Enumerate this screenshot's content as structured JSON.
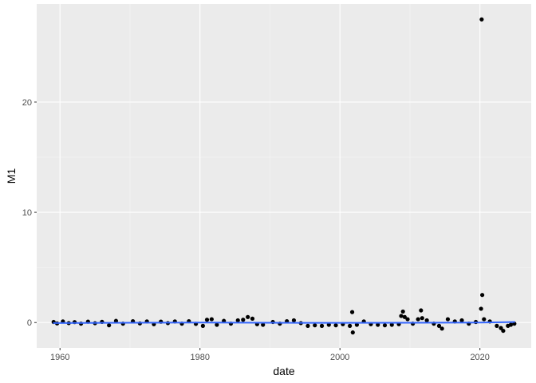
{
  "chart_data": {
    "type": "scatter",
    "title": "",
    "xlabel": "date",
    "ylabel": "M1",
    "x_scale": "date",
    "xlim": [
      "1956-09-01",
      "2027-05-01"
    ],
    "ylim": [
      -2.3,
      28.9
    ],
    "x_ticks": [
      {
        "value": "1960-01-01",
        "label": "1960"
      },
      {
        "value": "1980-01-01",
        "label": "1980"
      },
      {
        "value": "2000-01-01",
        "label": "2000"
      },
      {
        "value": "2020-01-01",
        "label": "2020"
      }
    ],
    "y_ticks": [
      {
        "value": 0,
        "label": "0"
      },
      {
        "value": 10,
        "label": "10"
      },
      {
        "value": 20,
        "label": "20"
      }
    ],
    "grid": true,
    "legend": "none",
    "colors": {
      "panel_background": "#ebebeb",
      "grid_major": "#ffffff",
      "grid_minor": "#f5f5f5",
      "points": "#000000",
      "smooth_line": "#3366ff"
    },
    "series": [
      {
        "kind": "points",
        "points": [
          [
            "1959-02-01",
            0.05
          ],
          [
            "1959-08-01",
            -0.08
          ],
          [
            "1960-06-01",
            0.1
          ],
          [
            "1961-04-01",
            -0.05
          ],
          [
            "1962-02-01",
            0.04
          ],
          [
            "1963-01-01",
            -0.1
          ],
          [
            "1964-01-01",
            0.08
          ],
          [
            "1965-01-01",
            -0.06
          ],
          [
            "1966-01-01",
            0.06
          ],
          [
            "1967-01-01",
            -0.25
          ],
          [
            "1968-01-01",
            0.15
          ],
          [
            "1969-01-01",
            -0.1
          ],
          [
            "1970-06-01",
            0.12
          ],
          [
            "1971-06-01",
            -0.08
          ],
          [
            "1972-06-01",
            0.1
          ],
          [
            "1973-06-01",
            -0.15
          ],
          [
            "1974-06-01",
            0.08
          ],
          [
            "1975-06-01",
            -0.05
          ],
          [
            "1976-06-01",
            0.1
          ],
          [
            "1977-06-01",
            -0.1
          ],
          [
            "1978-06-01",
            0.12
          ],
          [
            "1979-06-01",
            -0.12
          ],
          [
            "1980-06-01",
            -0.3
          ],
          [
            "1981-01-01",
            0.25
          ],
          [
            "1981-09-01",
            0.3
          ],
          [
            "1982-06-01",
            -0.2
          ],
          [
            "1983-06-01",
            0.15
          ],
          [
            "1984-06-01",
            -0.1
          ],
          [
            "1985-06-01",
            0.2
          ],
          [
            "1986-03-01",
            0.25
          ],
          [
            "1986-11-01",
            0.5
          ],
          [
            "1987-07-01",
            0.35
          ],
          [
            "1988-03-01",
            -0.15
          ],
          [
            "1989-01-01",
            -0.2
          ],
          [
            "1990-06-01",
            0.05
          ],
          [
            "1991-06-01",
            -0.1
          ],
          [
            "1992-06-01",
            0.12
          ],
          [
            "1993-06-01",
            0.2
          ],
          [
            "1994-06-01",
            -0.05
          ],
          [
            "1995-06-01",
            -0.3
          ],
          [
            "1996-06-01",
            -0.25
          ],
          [
            "1997-06-01",
            -0.3
          ],
          [
            "1998-06-01",
            -0.2
          ],
          [
            "1999-06-01",
            -0.25
          ],
          [
            "2000-06-01",
            -0.15
          ],
          [
            "2001-06-01",
            -0.3
          ],
          [
            "2001-10-01",
            0.95
          ],
          [
            "2001-11-01",
            -0.9
          ],
          [
            "2002-06-01",
            -0.2
          ],
          [
            "2003-06-01",
            0.1
          ],
          [
            "2004-06-01",
            -0.15
          ],
          [
            "2005-06-01",
            -0.2
          ],
          [
            "2006-06-01",
            -0.25
          ],
          [
            "2007-06-01",
            -0.2
          ],
          [
            "2008-06-01",
            -0.15
          ],
          [
            "2008-10-01",
            0.6
          ],
          [
            "2009-01-01",
            1.0
          ],
          [
            "2009-04-01",
            0.5
          ],
          [
            "2009-09-01",
            0.3
          ],
          [
            "2010-06-01",
            -0.1
          ],
          [
            "2011-03-01",
            0.3
          ],
          [
            "2011-08-01",
            1.1
          ],
          [
            "2011-10-01",
            0.4
          ],
          [
            "2012-06-01",
            0.2
          ],
          [
            "2013-06-01",
            -0.1
          ],
          [
            "2014-03-01",
            -0.3
          ],
          [
            "2014-08-01",
            -0.55
          ],
          [
            "2015-06-01",
            0.3
          ],
          [
            "2016-06-01",
            0.1
          ],
          [
            "2017-06-01",
            0.2
          ],
          [
            "2018-06-01",
            -0.1
          ],
          [
            "2019-06-01",
            0.05
          ],
          [
            "2020-03-01",
            1.25
          ],
          [
            "2020-04-01",
            27.5
          ],
          [
            "2020-05-01",
            2.5
          ],
          [
            "2020-08-01",
            0.3
          ],
          [
            "2021-06-01",
            0.1
          ],
          [
            "2022-06-01",
            -0.3
          ],
          [
            "2023-01-01",
            -0.5
          ],
          [
            "2023-05-01",
            -0.75
          ],
          [
            "2024-01-01",
            -0.3
          ],
          [
            "2024-06-01",
            -0.2
          ],
          [
            "2024-12-01",
            -0.1
          ]
        ]
      },
      {
        "kind": "smooth",
        "points": [
          [
            "1959-01-01",
            -0.05
          ],
          [
            "1970-01-01",
            -0.02
          ],
          [
            "1980-01-01",
            0.0
          ],
          [
            "1990-01-01",
            -0.02
          ],
          [
            "2000-01-01",
            -0.03
          ],
          [
            "2010-01-01",
            -0.02
          ],
          [
            "2020-01-01",
            0.0
          ],
          [
            "2025-01-01",
            0.05
          ]
        ]
      }
    ]
  }
}
